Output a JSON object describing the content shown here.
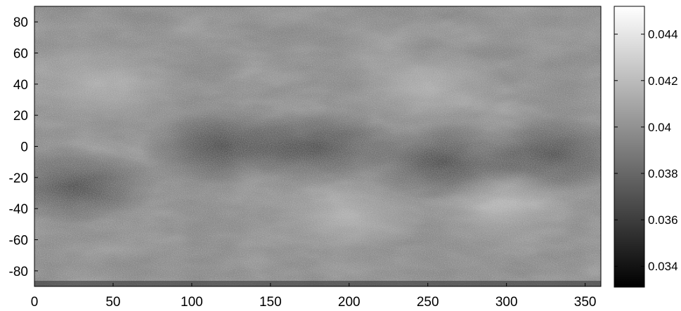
{
  "chart_data": {
    "type": "heatmap",
    "title": "",
    "xlabel": "",
    "ylabel": "",
    "colormap": "grayscale",
    "xlim": [
      0,
      360
    ],
    "ylim": [
      -90,
      90
    ],
    "x_ticks": [
      0,
      50,
      100,
      150,
      200,
      250,
      300,
      350
    ],
    "y_ticks": [
      80,
      60,
      40,
      20,
      0,
      -20,
      -40,
      -60,
      -80
    ],
    "colorbar": {
      "range": [
        0.0331,
        0.0452
      ],
      "ticks": [
        0.034,
        0.036,
        0.038,
        0.04,
        0.042,
        0.044
      ],
      "tick_labels": [
        "0.034",
        "0.036",
        "0.038",
        "0.04",
        "0.042",
        "0.044"
      ]
    },
    "grid": false,
    "dark_regions": [
      {
        "lon": 180,
        "lat": 0,
        "note": "broad darker equatorial band"
      },
      {
        "lon": 260,
        "lat": -10
      },
      {
        "lon": 330,
        "lat": -5
      },
      {
        "lon": 25,
        "lat": -25
      },
      {
        "lon": 120,
        "lat": 0
      }
    ],
    "bright_regions": [
      {
        "lon": 200,
        "lat": -45
      },
      {
        "lon": 300,
        "lat": -40
      },
      {
        "lon": 40,
        "lat": 40
      },
      {
        "lon": 250,
        "lat": 40
      }
    ]
  }
}
